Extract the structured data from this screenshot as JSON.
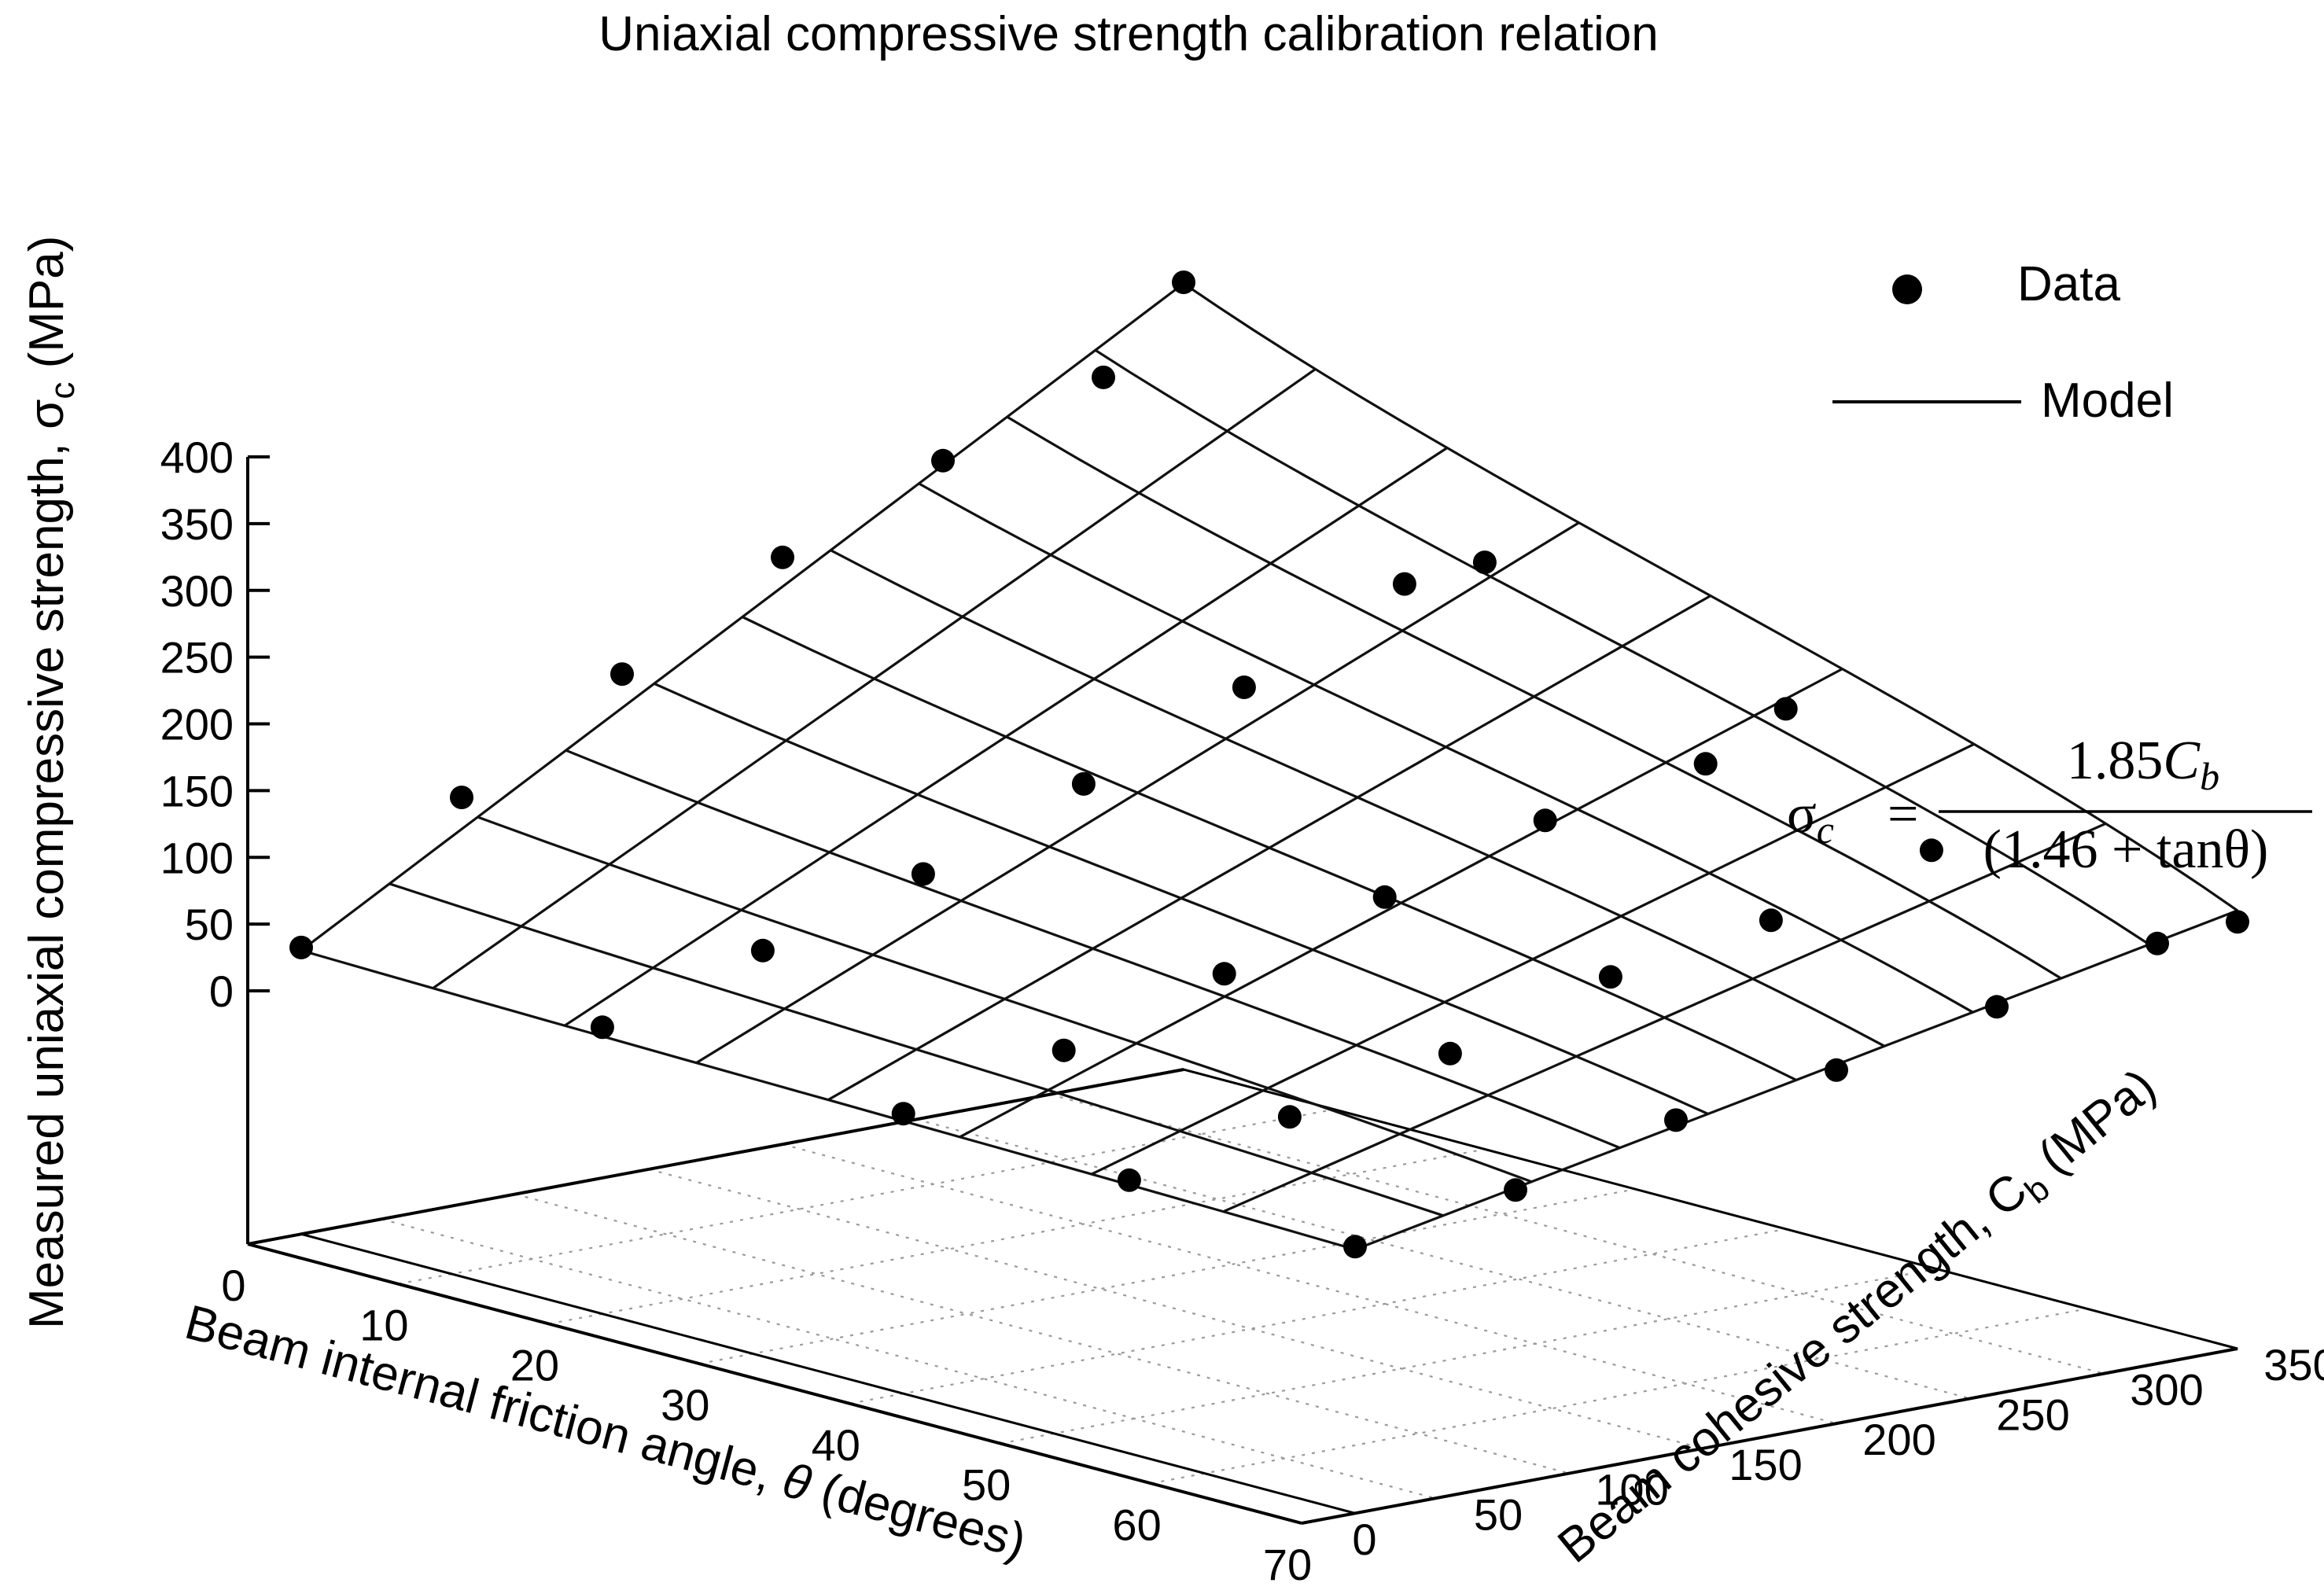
{
  "chart_data": {
    "type": "scatter",
    "title": "Uniaxial compressive strength calibration relation",
    "axes": {
      "x": {
        "label_main": "Beam internal friction angle, ",
        "label_symbol": "θ",
        "label_unit": " (degrees)",
        "range": [
          0,
          70
        ],
        "ticks": [
          "0",
          "10",
          "20",
          "30",
          "40",
          "50",
          "60",
          "70"
        ]
      },
      "y": {
        "label_main": "Beam cohesive strength, C",
        "label_sub": "b",
        "label_unit": " (MPa)",
        "range": [
          0,
          350
        ],
        "ticks": [
          "0",
          "50",
          "100",
          "150",
          "200",
          "250",
          "300",
          "350"
        ]
      },
      "z": {
        "label_main": "Measured uniaxial compressive strength, σ",
        "label_sub": "c",
        "label_unit": " (MPa)",
        "range": [
          0,
          400
        ],
        "ticks": [
          "0",
          "50",
          "100",
          "150",
          "200",
          "250",
          "300",
          "350",
          "400"
        ]
      }
    },
    "grid": true,
    "legend": {
      "position": "top-right",
      "entries": [
        {
          "label": "Data",
          "marker": "dot"
        },
        {
          "label": "Model",
          "marker": "line"
        }
      ]
    },
    "model": {
      "numerator": "1.85",
      "numerator_symbol": "C",
      "numerator_sub": "b",
      "denominator": "(1.46 + tanθ)",
      "lhs_symbol": "σ",
      "lhs_sub": "c",
      "equals": "="
    },
    "surface": {
      "x": [
        0,
        70
      ],
      "y": [
        20,
        350
      ],
      "x_lines": 9,
      "y_lines": 11
    },
    "series": [
      {
        "name": "Data",
        "points": [
          {
            "x": 0,
            "y": 20,
            "z": 25
          },
          {
            "x": 0,
            "y": 80,
            "z": 115
          },
          {
            "x": 0,
            "y": 140,
            "z": 185
          },
          {
            "x": 0,
            "y": 200,
            "z": 250
          },
          {
            "x": 0,
            "y": 260,
            "z": 300
          },
          {
            "x": 0,
            "y": 320,
            "z": 340
          },
          {
            "x": 0,
            "y": 350,
            "z": 400
          },
          {
            "x": 20,
            "y": 20,
            "z": 25
          },
          {
            "x": 20,
            "y": 80,
            "z": 60
          },
          {
            "x": 20,
            "y": 140,
            "z": 95
          },
          {
            "x": 20,
            "y": 200,
            "z": 140
          },
          {
            "x": 20,
            "y": 260,
            "z": 190
          },
          {
            "x": 20,
            "y": 320,
            "z": 245
          },
          {
            "x": 20,
            "y": 350,
            "z": 250
          },
          {
            "x": 40,
            "y": 20,
            "z": 20
          },
          {
            "x": 40,
            "y": 80,
            "z": 45
          },
          {
            "x": 40,
            "y": 140,
            "z": 80
          },
          {
            "x": 40,
            "y": 200,
            "z": 115
          },
          {
            "x": 40,
            "y": 260,
            "z": 150
          },
          {
            "x": 40,
            "y": 320,
            "z": 170
          },
          {
            "x": 40,
            "y": 350,
            "z": 200
          },
          {
            "x": 70,
            "y": 20,
            "z": 10
          },
          {
            "x": 70,
            "y": 80,
            "z": 30
          },
          {
            "x": 70,
            "y": 140,
            "z": 60
          },
          {
            "x": 70,
            "y": 200,
            "z": 75
          },
          {
            "x": 70,
            "y": 260,
            "z": 100
          },
          {
            "x": 70,
            "y": 320,
            "z": 125
          },
          {
            "x": 70,
            "y": 350,
            "z": 130
          },
          {
            "x": 55,
            "y": 20,
            "z": 15
          },
          {
            "x": 55,
            "y": 80,
            "z": 40
          },
          {
            "x": 55,
            "y": 140,
            "z": 65
          },
          {
            "x": 55,
            "y": 200,
            "z": 100
          },
          {
            "x": 55,
            "y": 260,
            "z": 120
          },
          {
            "x": 55,
            "y": 320,
            "z": 150
          }
        ]
      }
    ]
  }
}
